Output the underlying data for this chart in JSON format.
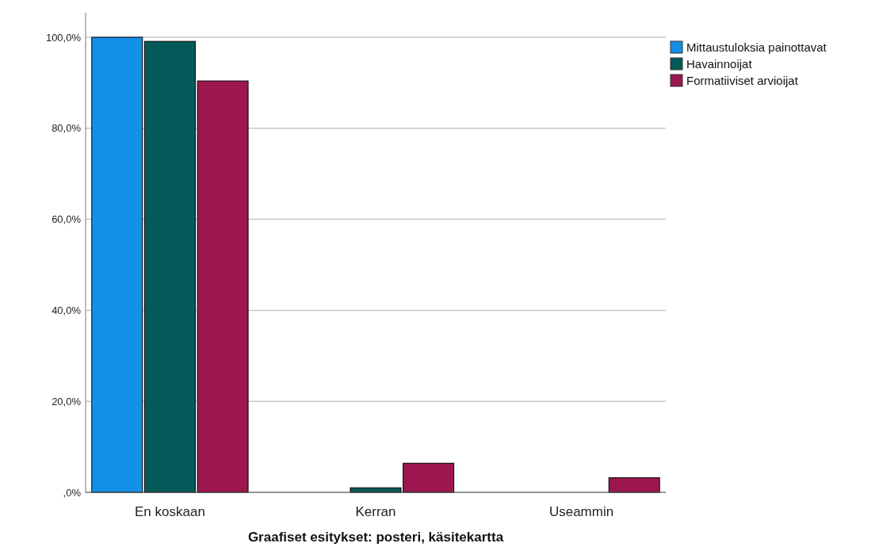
{
  "chart_data": {
    "type": "bar",
    "xlabel": "Graafiset esitykset: posteri, käsitekartta",
    "categories": [
      "En koskaan",
      "Kerran",
      "Useammin"
    ],
    "series": [
      {
        "name": "Mittaustuloksia painottavat",
        "color": "#1490e6",
        "values": [
          100,
          0,
          0
        ]
      },
      {
        "name": "Havainnoijat",
        "color": "#045a58",
        "values": [
          99.1,
          1.0,
          0
        ]
      },
      {
        "name": "Formatiiviset arvioijat",
        "color": "#9c174e",
        "values": [
          90.4,
          6.4,
          3.2
        ]
      }
    ],
    "ylim": [
      0,
      105.4
    ],
    "yticks": [
      {
        "value": 0,
        "label": ",0%"
      },
      {
        "value": 20,
        "label": "20,0%"
      },
      {
        "value": 40,
        "label": "40,0%"
      },
      {
        "value": 60,
        "label": "60,0%"
      },
      {
        "value": 80,
        "label": "80,0%"
      },
      {
        "value": 100,
        "label": "100,0%"
      }
    ],
    "grid": "y",
    "legend": "top right"
  }
}
